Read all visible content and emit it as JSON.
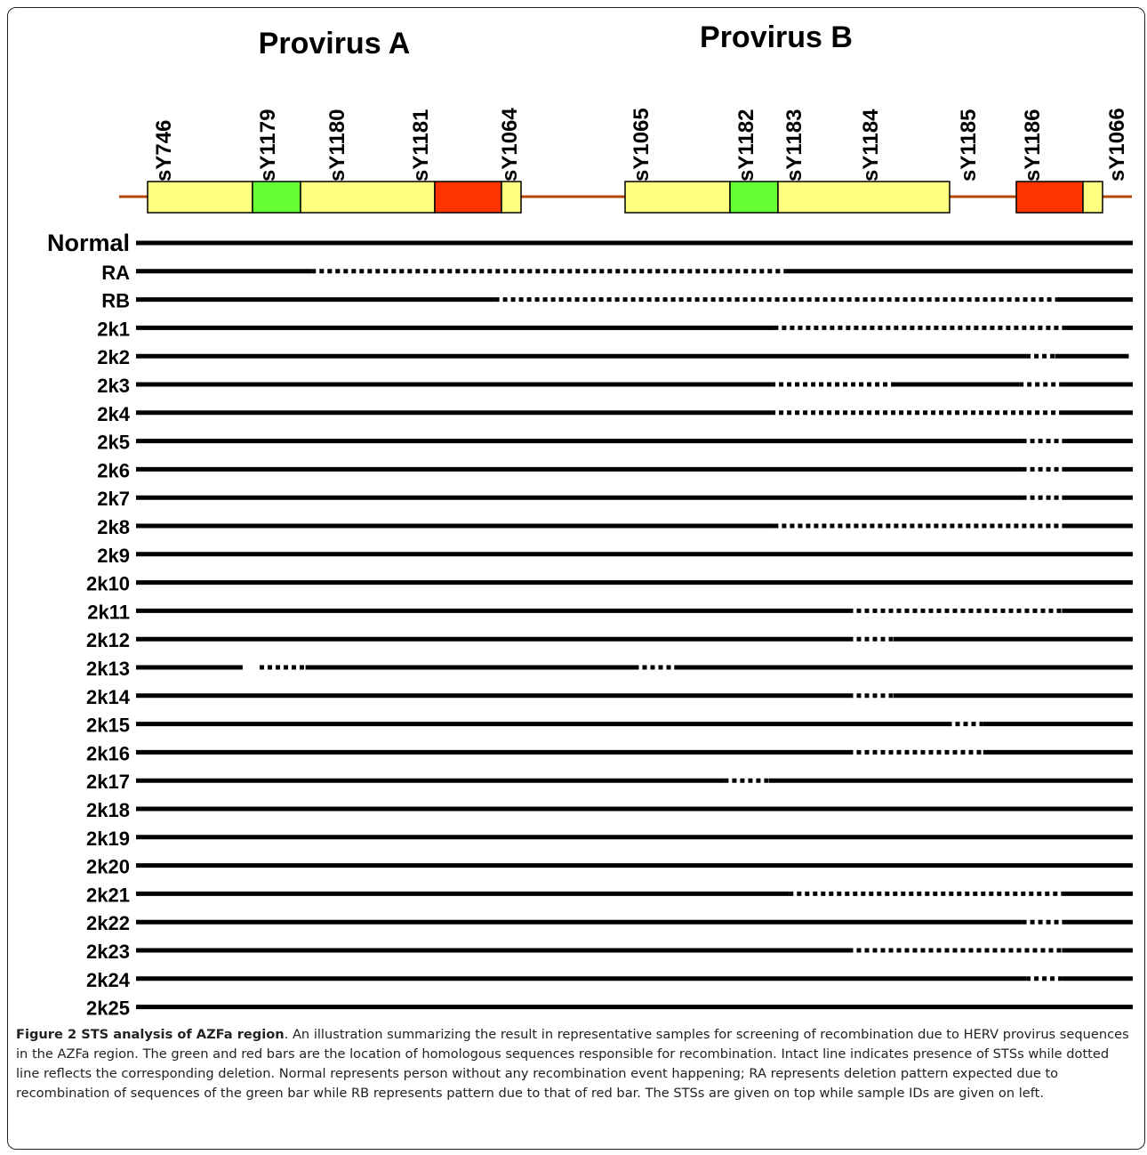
{
  "proviruses": [
    {
      "name": "Provirus A"
    },
    {
      "name": "Provirus B"
    }
  ],
  "sts": [
    "sY746",
    "sY1179",
    "sY1180",
    "sY1181",
    "sY1064",
    "sY1065",
    "sY1182",
    "sY1183",
    "sY1184",
    "sY1185",
    "sY1186",
    "sY1066"
  ],
  "colors": {
    "yellow": "#ffff80",
    "green": "#66ff33",
    "red": "#ff3300",
    "backbone": "#b34700",
    "line": "#000000"
  },
  "samples": [
    {
      "id": "Normal",
      "segments": [
        [
          "solid",
          0,
          1
        ]
      ]
    },
    {
      "id": "RA",
      "segments": [
        [
          "solid",
          0,
          0.176
        ],
        [
          "dotted",
          0.176,
          0.652
        ],
        [
          "solid",
          0.652,
          1
        ]
      ]
    },
    {
      "id": "RB",
      "segments": [
        [
          "solid",
          0,
          0.36
        ],
        [
          "dotted",
          0.36,
          0.924
        ],
        [
          "solid",
          0.924,
          1
        ]
      ]
    },
    {
      "id": "2k1",
      "segments": [
        [
          "solid",
          0,
          0.64
        ],
        [
          "dotted",
          0.64,
          0.929
        ],
        [
          "solid",
          0.929,
          1
        ]
      ]
    },
    {
      "id": "2k2",
      "segments": [
        [
          "solid",
          0,
          0.893
        ],
        [
          "dotted",
          0.893,
          0.922
        ],
        [
          "solid",
          0.922,
          0.996
        ]
      ]
    },
    {
      "id": "2k3",
      "segments": [
        [
          "solid",
          0,
          0.637
        ],
        [
          "dotted",
          0.637,
          0.76
        ],
        [
          "solid",
          0.76,
          0.886
        ],
        [
          "dotted",
          0.886,
          0.929
        ],
        [
          "solid",
          0.929,
          1
        ]
      ]
    },
    {
      "id": "2k4",
      "segments": [
        [
          "solid",
          0,
          0.637
        ],
        [
          "dotted",
          0.637,
          0.929
        ],
        [
          "solid",
          0.929,
          1
        ]
      ]
    },
    {
      "id": "2k5",
      "segments": [
        [
          "solid",
          0,
          0.889
        ],
        [
          "dotted",
          0.889,
          0.929
        ],
        [
          "solid",
          0.929,
          1
        ]
      ]
    },
    {
      "id": "2k6",
      "segments": [
        [
          "solid",
          0,
          0.889
        ],
        [
          "dotted",
          0.889,
          0.929
        ],
        [
          "solid",
          0.929,
          1
        ]
      ]
    },
    {
      "id": "2k7",
      "segments": [
        [
          "solid",
          0,
          0.889
        ],
        [
          "dotted",
          0.889,
          0.929
        ],
        [
          "solid",
          0.929,
          1
        ]
      ]
    },
    {
      "id": "2k8",
      "segments": [
        [
          "solid",
          0,
          0.64
        ],
        [
          "dotted",
          0.64,
          0.929
        ],
        [
          "solid",
          0.929,
          1
        ]
      ]
    },
    {
      "id": "2k9",
      "segments": [
        [
          "solid",
          0,
          1
        ]
      ]
    },
    {
      "id": "2k10",
      "segments": [
        [
          "solid",
          0,
          1
        ]
      ]
    },
    {
      "id": "2k11",
      "segments": [
        [
          "solid",
          0,
          0.715
        ],
        [
          "dotted",
          0.715,
          0.929
        ],
        [
          "solid",
          0.929,
          1
        ]
      ]
    },
    {
      "id": "2k12",
      "segments": [
        [
          "solid",
          0,
          0.715
        ],
        [
          "dotted",
          0.715,
          0.76
        ],
        [
          "solid",
          0.76,
          1
        ]
      ]
    },
    {
      "id": "2k13",
      "segments": [
        [
          "solid",
          0,
          0.107
        ],
        [
          "dotted",
          0.124,
          0.17
        ],
        [
          "solid",
          0.17,
          0.5
        ],
        [
          "dotted",
          0.5,
          0.54
        ],
        [
          "solid",
          0.54,
          1
        ]
      ]
    },
    {
      "id": "2k14",
      "segments": [
        [
          "solid",
          0,
          0.715
        ],
        [
          "dotted",
          0.715,
          0.76
        ],
        [
          "solid",
          0.76,
          1
        ]
      ]
    },
    {
      "id": "2k15",
      "segments": [
        [
          "solid",
          0,
          0.814
        ],
        [
          "dotted",
          0.814,
          0.85
        ],
        [
          "solid",
          0.85,
          1
        ]
      ]
    },
    {
      "id": "2k16",
      "segments": [
        [
          "solid",
          0,
          0.715
        ],
        [
          "dotted",
          0.715,
          0.85
        ],
        [
          "solid",
          0.85,
          1
        ]
      ]
    },
    {
      "id": "2k17",
      "segments": [
        [
          "solid",
          0,
          0.59
        ],
        [
          "dotted",
          0.59,
          0.635
        ],
        [
          "solid",
          0.635,
          1
        ]
      ]
    },
    {
      "id": "2k18",
      "segments": [
        [
          "solid",
          0,
          1
        ]
      ]
    },
    {
      "id": "2k19",
      "segments": [
        [
          "solid",
          0,
          1
        ]
      ]
    },
    {
      "id": "2k20",
      "segments": [
        [
          "solid",
          0,
          1
        ]
      ]
    },
    {
      "id": "2k21",
      "segments": [
        [
          "solid",
          0,
          0.655
        ],
        [
          "dotted",
          0.655,
          0.929
        ],
        [
          "solid",
          0.929,
          1
        ]
      ]
    },
    {
      "id": "2k22",
      "segments": [
        [
          "solid",
          0,
          0.889
        ],
        [
          "dotted",
          0.889,
          0.929
        ],
        [
          "solid",
          0.929,
          1
        ]
      ]
    },
    {
      "id": "2k23",
      "segments": [
        [
          "solid",
          0,
          0.715
        ],
        [
          "dotted",
          0.715,
          0.929
        ],
        [
          "solid",
          0.929,
          1
        ]
      ]
    },
    {
      "id": "2k24",
      "segments": [
        [
          "solid",
          0,
          0.893
        ],
        [
          "dotted",
          0.893,
          0.929
        ],
        [
          "solid",
          0.929,
          1
        ]
      ]
    },
    {
      "id": "2k25",
      "segments": [
        [
          "solid",
          0,
          1
        ]
      ]
    }
  ],
  "caption": {
    "title": "Figure 2 STS analysis of AZFa region",
    "text": ". An illustration summarizing the result in representative samples for screening of recombination due to HERV provirus sequences in the AZFa region. The green and red bars are the location of homologous sequences responsible for recombination. Intact line indicates presence of STSs while dotted line reflects the corresponding deletion. Normal represents person without any recombination event happening; RA represents deletion pattern expected due to recombination of sequences of the green bar while RB represents pattern due to that of red bar. The STSs are given on top while sample IDs are given on left."
  }
}
